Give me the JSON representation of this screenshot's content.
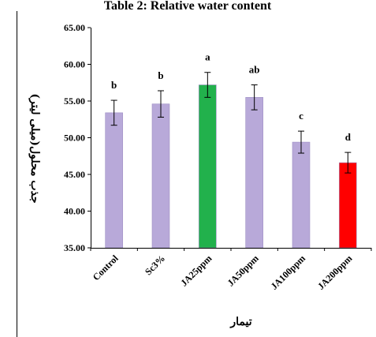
{
  "chart_data": {
    "type": "bar",
    "title": "Table 2: Relative water content",
    "xlabel": "تیمار",
    "ylabel": "جذب محلول(میلی لیتر)",
    "ylim": [
      35,
      65
    ],
    "yticks": [
      "35.00",
      "40.00",
      "45.00",
      "50.00",
      "55.00",
      "60.00",
      "65.00"
    ],
    "categories": [
      "Control",
      "Sc3%",
      "JA25ppm",
      "JA50ppm",
      "JA100ppm",
      "JA200ppm"
    ],
    "values": [
      53.4,
      54.6,
      57.2,
      55.5,
      49.4,
      46.6
    ],
    "errors": [
      1.7,
      1.8,
      1.7,
      1.7,
      1.5,
      1.4
    ],
    "letters": [
      "b",
      "b",
      "a",
      "ab",
      "c",
      "d"
    ],
    "colors": [
      "#b8a9d9",
      "#b8a9d9",
      "#22b14c",
      "#b8a9d9",
      "#b8a9d9",
      "#ff0000"
    ],
    "grid": false,
    "legend": "none"
  }
}
